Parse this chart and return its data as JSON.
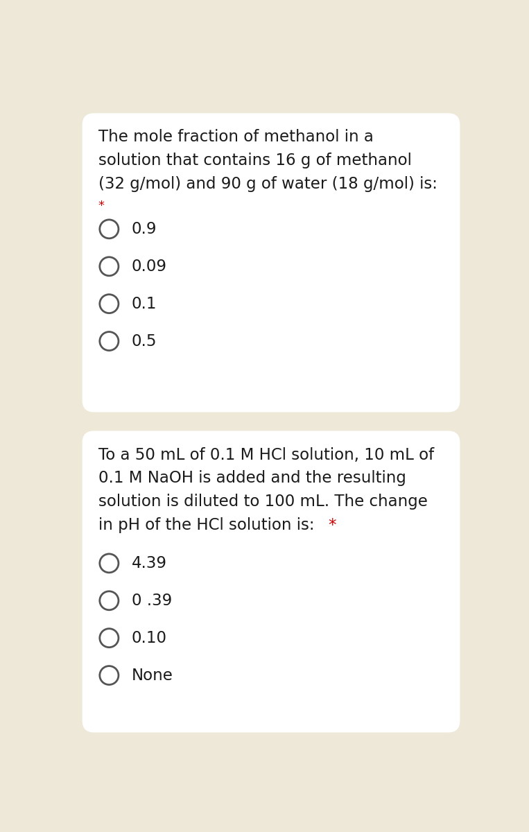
{
  "background_color": "#ede8d8",
  "card_bg": "#ffffff",
  "panel1": {
    "question_lines": [
      "The mole fraction of methanol in a",
      "solution that contains 16 g of methanol",
      "(32 g/mol) and 90 g of water (18 g/mol) is:"
    ],
    "asterisk": "*",
    "options": [
      "0.9",
      "0.09",
      "0.1",
      "0.5"
    ]
  },
  "panel2": {
    "question_lines": [
      "To a 50 mL of 0.1 M HCl solution, 10 mL of",
      "0.1 M NaOH is added and the resulting",
      "solution is diluted to 100 mL. The change",
      "in pH of the HCl solution is: "
    ],
    "asterisk": "*",
    "options": [
      "4.39",
      "0 .39",
      "0.10",
      "None"
    ]
  },
  "text_color": "#1a1a1a",
  "asterisk_color": "#cc0000",
  "circle_edge_color": "#555555",
  "font_size_question": 16.5,
  "font_size_option": 16.5,
  "font_size_asterisk": 13
}
